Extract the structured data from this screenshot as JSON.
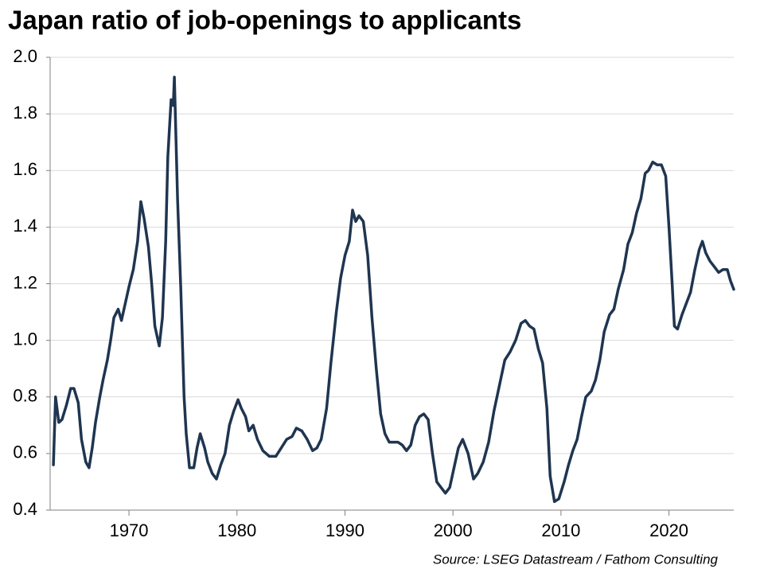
{
  "chart_data": {
    "type": "line",
    "title": "Japan ratio of job-openings to applicants",
    "source": "Source: LSEG Datastream / Fathom Consulting",
    "color": "#1f3550",
    "grid": true,
    "xlim": [
      1962.7,
      2026.0
    ],
    "xticks": [
      1970,
      1980,
      1990,
      2000,
      2010,
      2020
    ],
    "ylim": [
      0.4,
      2.0
    ],
    "yticks": [
      {
        "value": 0.4,
        "label": "0.4"
      },
      {
        "value": 0.6,
        "label": "0.6"
      },
      {
        "value": 0.8,
        "label": "0.8"
      },
      {
        "value": 1.0,
        "label": "1.0"
      },
      {
        "value": 1.2,
        "label": "1.2"
      },
      {
        "value": 1.4,
        "label": "1.4"
      },
      {
        "value": 1.6,
        "label": "1.6"
      },
      {
        "value": 1.8,
        "label": "1.8"
      },
      {
        "value": 2.0,
        "label": "2.0"
      }
    ],
    "x": [
      1963.0,
      1963.2,
      1963.5,
      1963.8,
      1964.2,
      1964.6,
      1964.9,
      1965.3,
      1965.6,
      1966.0,
      1966.3,
      1966.6,
      1966.9,
      1967.3,
      1967.6,
      1968.0,
      1968.3,
      1968.6,
      1969.0,
      1969.3,
      1969.6,
      1970.0,
      1970.4,
      1970.8,
      1971.1,
      1971.4,
      1971.8,
      1972.1,
      1972.4,
      1972.8,
      1973.1,
      1973.4,
      1973.6,
      1973.9,
      1974.1,
      1974.2,
      1974.5,
      1974.8,
      1975.1,
      1975.3,
      1975.6,
      1976.0,
      1976.3,
      1976.6,
      1977.0,
      1977.3,
      1977.7,
      1978.1,
      1978.5,
      1978.9,
      1979.3,
      1979.7,
      1980.1,
      1980.4,
      1980.8,
      1981.1,
      1981.5,
      1981.9,
      1982.4,
      1983.0,
      1983.6,
      1984.1,
      1984.6,
      1985.1,
      1985.5,
      1986.0,
      1986.5,
      1987.0,
      1987.4,
      1987.8,
      1988.3,
      1988.7,
      1989.2,
      1989.6,
      1990.0,
      1990.4,
      1990.7,
      1991.0,
      1991.3,
      1991.7,
      1992.1,
      1992.5,
      1992.9,
      1993.3,
      1993.7,
      1994.1,
      1994.5,
      1994.9,
      1995.3,
      1995.7,
      1996.1,
      1996.5,
      1996.9,
      1997.3,
      1997.7,
      1998.1,
      1998.5,
      1998.9,
      1999.3,
      1999.7,
      2000.1,
      2000.5,
      2000.9,
      2001.4,
      2001.9,
      2002.3,
      2002.8,
      2003.3,
      2003.8,
      2004.3,
      2004.8,
      2005.3,
      2005.8,
      2006.3,
      2006.7,
      2007.1,
      2007.5,
      2007.9,
      2008.3,
      2008.7,
      2009.0,
      2009.4,
      2009.8,
      2010.3,
      2010.7,
      2011.1,
      2011.5,
      2011.9,
      2012.3,
      2012.8,
      2013.2,
      2013.6,
      2014.0,
      2014.5,
      2014.9,
      2015.3,
      2015.8,
      2016.2,
      2016.6,
      2017.0,
      2017.4,
      2017.8,
      2018.1,
      2018.5,
      2018.9,
      2019.3,
      2019.7,
      2020.0,
      2020.3,
      2020.5,
      2020.8,
      2021.2,
      2021.6,
      2022.0,
      2022.4,
      2022.8,
      2023.1,
      2023.4,
      2023.8,
      2024.2,
      2024.6,
      2025.0,
      2025.4,
      2025.7,
      2026.0
    ],
    "values": [
      0.56,
      0.8,
      0.71,
      0.72,
      0.77,
      0.83,
      0.83,
      0.78,
      0.65,
      0.57,
      0.55,
      0.62,
      0.71,
      0.8,
      0.86,
      0.93,
      1.0,
      1.08,
      1.11,
      1.07,
      1.12,
      1.19,
      1.25,
      1.35,
      1.49,
      1.43,
      1.33,
      1.2,
      1.05,
      0.98,
      1.08,
      1.35,
      1.65,
      1.85,
      1.83,
      1.93,
      1.5,
      1.18,
      0.8,
      0.67,
      0.55,
      0.55,
      0.62,
      0.67,
      0.62,
      0.57,
      0.53,
      0.51,
      0.56,
      0.6,
      0.7,
      0.75,
      0.79,
      0.76,
      0.73,
      0.68,
      0.7,
      0.65,
      0.61,
      0.59,
      0.59,
      0.62,
      0.65,
      0.66,
      0.69,
      0.68,
      0.65,
      0.61,
      0.62,
      0.65,
      0.76,
      0.92,
      1.1,
      1.22,
      1.3,
      1.35,
      1.46,
      1.42,
      1.44,
      1.42,
      1.3,
      1.08,
      0.9,
      0.74,
      0.67,
      0.64,
      0.64,
      0.64,
      0.63,
      0.61,
      0.63,
      0.7,
      0.73,
      0.74,
      0.72,
      0.6,
      0.5,
      0.48,
      0.46,
      0.48,
      0.55,
      0.62,
      0.65,
      0.6,
      0.51,
      0.53,
      0.57,
      0.64,
      0.75,
      0.84,
      0.93,
      0.96,
      1.0,
      1.06,
      1.07,
      1.05,
      1.04,
      0.97,
      0.92,
      0.76,
      0.52,
      0.43,
      0.44,
      0.5,
      0.56,
      0.61,
      0.65,
      0.73,
      0.8,
      0.82,
      0.86,
      0.93,
      1.03,
      1.09,
      1.11,
      1.18,
      1.25,
      1.34,
      1.38,
      1.45,
      1.5,
      1.59,
      1.6,
      1.63,
      1.62,
      1.62,
      1.58,
      1.4,
      1.2,
      1.05,
      1.04,
      1.09,
      1.13,
      1.17,
      1.25,
      1.32,
      1.35,
      1.31,
      1.28,
      1.26,
      1.24,
      1.25,
      1.25,
      1.21,
      1.18
    ]
  }
}
